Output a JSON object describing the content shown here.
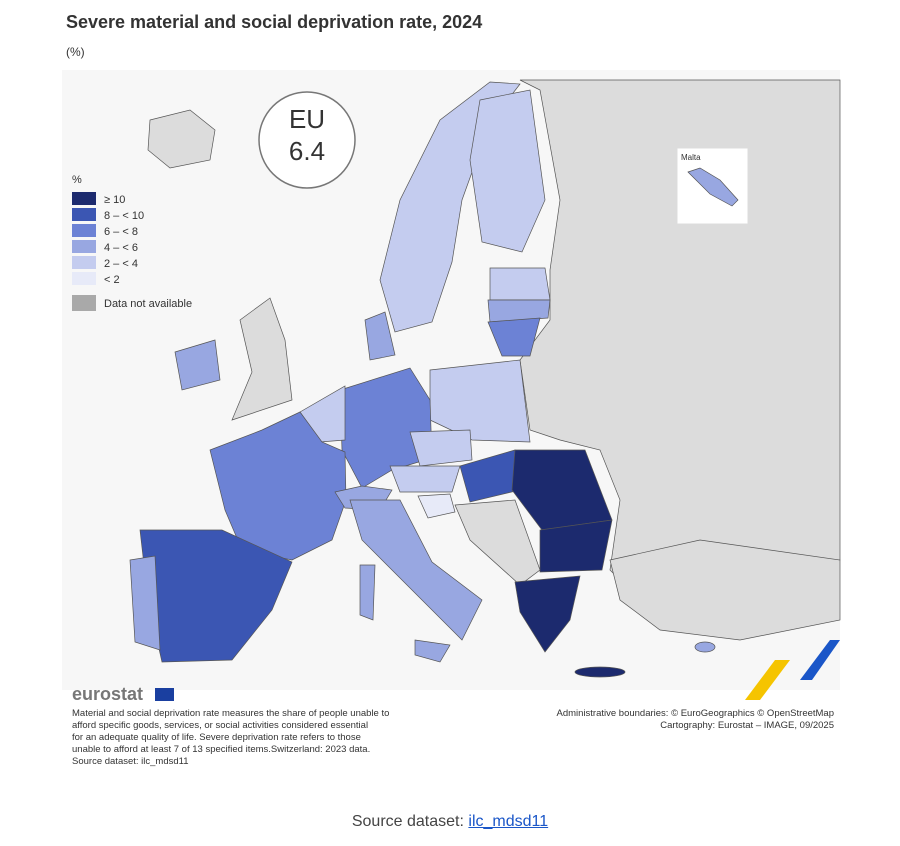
{
  "header": {
    "title": "Severe material and social deprivation rate, 2024",
    "unit": "(%)"
  },
  "eu_badge": {
    "label": "EU",
    "value": 6.4
  },
  "inset": {
    "label": "Malta"
  },
  "legend": {
    "title": "%",
    "items": [
      "≥ 10",
      "8 – < 10",
      "6 – < 8",
      "4 – < 6",
      "2 – < 4",
      "< 2"
    ],
    "not_available": "Data not available"
  },
  "footer": {
    "logo": "eurostat",
    "note_lines": [
      "Material and social deprivation rate measures the share of people unable to",
      "afford specific goods, services, or social activities considered essential",
      "for an adequate quality of life. Severe deprivation rate refers to those",
      "unable to afford at least 7 of 13 specified items.Switzerland: 2023 data.",
      "Source dataset: ilc_mdsd11"
    ],
    "attribution_lines": [
      "Administrative boundaries: © EuroGeographics © OpenStreetMap",
      "Cartography: Eurostat – IMAGE, 09/2025"
    ]
  },
  "source": {
    "label": "Source dataset:",
    "link": "ilc_mdsd11"
  }
}
